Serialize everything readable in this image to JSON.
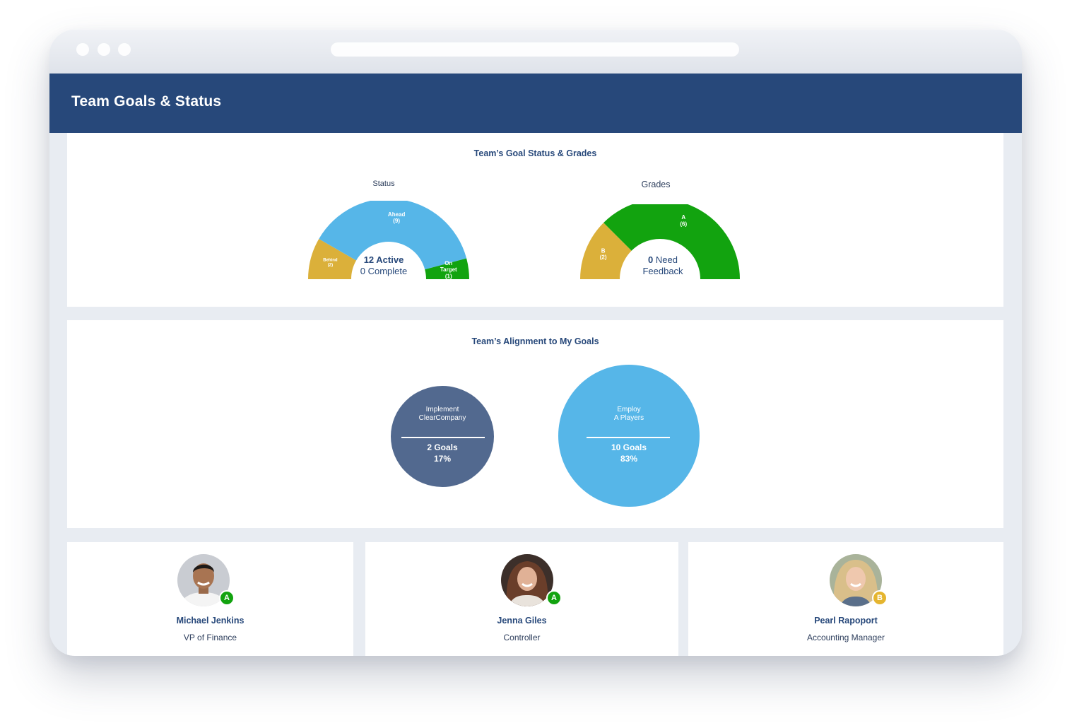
{
  "header": {
    "title": "Team Goals & Status"
  },
  "goal_status_panel": {
    "title": "Team’s Goal Status & Grades",
    "status": {
      "label": "Status",
      "segments": [
        {
          "name": "Behind",
          "count": "(2)",
          "value": 2,
          "color": "#dbb03a"
        },
        {
          "name": "Ahead",
          "count": "(9)",
          "value": 9,
          "color": "#56b6e8"
        },
        {
          "name": "On Target",
          "count": "(1)",
          "value": 1,
          "color": "#12a30f"
        }
      ],
      "center_primary": "12 Active",
      "center_secondary": "0 Complete"
    },
    "grades": {
      "label": "Grades",
      "segments": [
        {
          "name": "B",
          "count": "(2)",
          "value": 2,
          "color": "#dbb03a"
        },
        {
          "name": "A",
          "count": "(6)",
          "value": 6,
          "color": "#12a30f"
        }
      ],
      "center_number": "0",
      "center_word": "Need",
      "center_line2": "Feedback"
    }
  },
  "alignment_panel": {
    "title": "Team’s Alignment to My Goals",
    "bubbles": [
      {
        "line1": "Implement",
        "line2": "ClearCompany",
        "goals": "2 Goals",
        "percent": "17%",
        "color": "#52698f"
      },
      {
        "line1": "Employ",
        "line2": "A Players",
        "goals": "10 Goals",
        "percent": "83%",
        "color": "#56b6e8"
      }
    ]
  },
  "people": [
    {
      "name": "Michael Jenkins",
      "role": "VP of Finance",
      "grade": "A",
      "grade_color": "#12a30f"
    },
    {
      "name": "Jenna Giles",
      "role": "Controller",
      "grade": "A",
      "grade_color": "#12a30f"
    },
    {
      "name": "Pearl Rapoport",
      "role": "Accounting Manager",
      "grade": "B",
      "grade_color": "#e5b52f"
    }
  ]
}
